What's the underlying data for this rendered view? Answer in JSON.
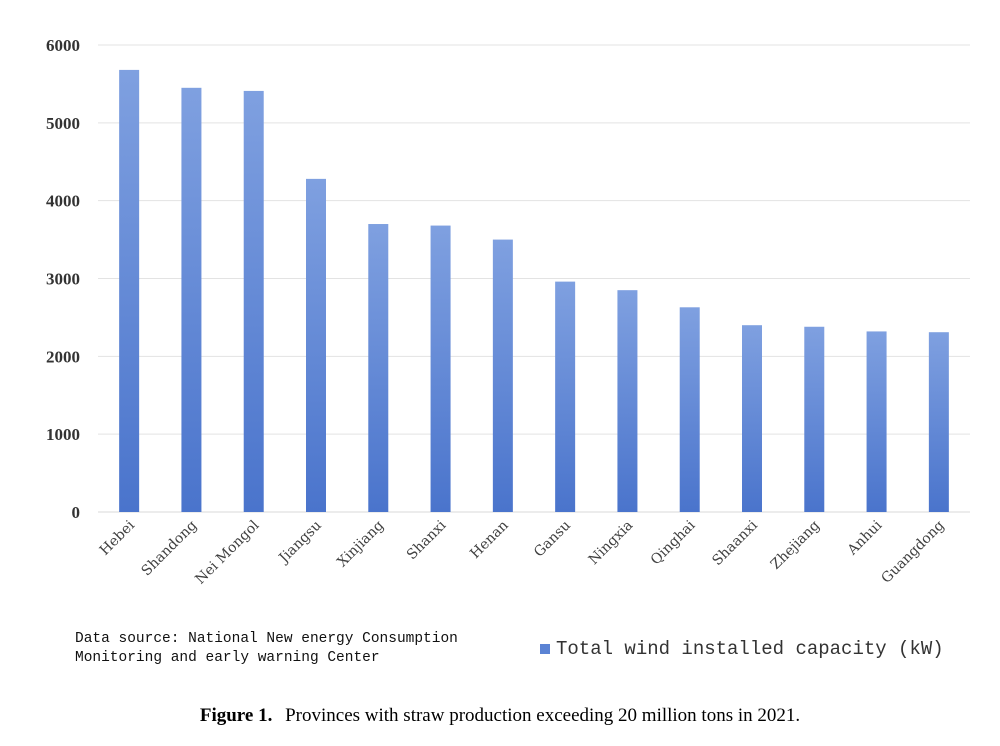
{
  "chart_data": {
    "type": "bar",
    "categories": [
      "Hebei",
      "Shandong",
      "Nei Mongol",
      "Jiangsu",
      "Xinjiang",
      "Shanxi",
      "Henan",
      "Gansu",
      "Ningxia",
      "Qinghai",
      "Shaanxi",
      "Zhejiang",
      "Anhui",
      "Guangdong"
    ],
    "series": [
      {
        "name": "Total wind installed capacity (kW)",
        "values": [
          5680,
          5450,
          5410,
          4280,
          3700,
          3680,
          3500,
          2960,
          2850,
          2630,
          2400,
          2380,
          2320,
          2310
        ],
        "color": "#5b83d4"
      }
    ],
    "yticks": [
      0,
      1000,
      2000,
      3000,
      4000,
      5000,
      6000
    ],
    "ylim": [
      0,
      6000
    ],
    "grid": true,
    "legend_position": "bottom-right"
  },
  "source_note": "Data source: National New energy Consumption\nMonitoring and early warning Center",
  "caption": {
    "label": "Figure 1.",
    "text": "Provinces with straw production exceeding 20 million tons in 2021."
  },
  "colors": {
    "bar_top": "#7fa0e0",
    "bar_bottom": "#4a74cc",
    "grid": "#e3e3e3",
    "axis": "#d9d9d9"
  }
}
